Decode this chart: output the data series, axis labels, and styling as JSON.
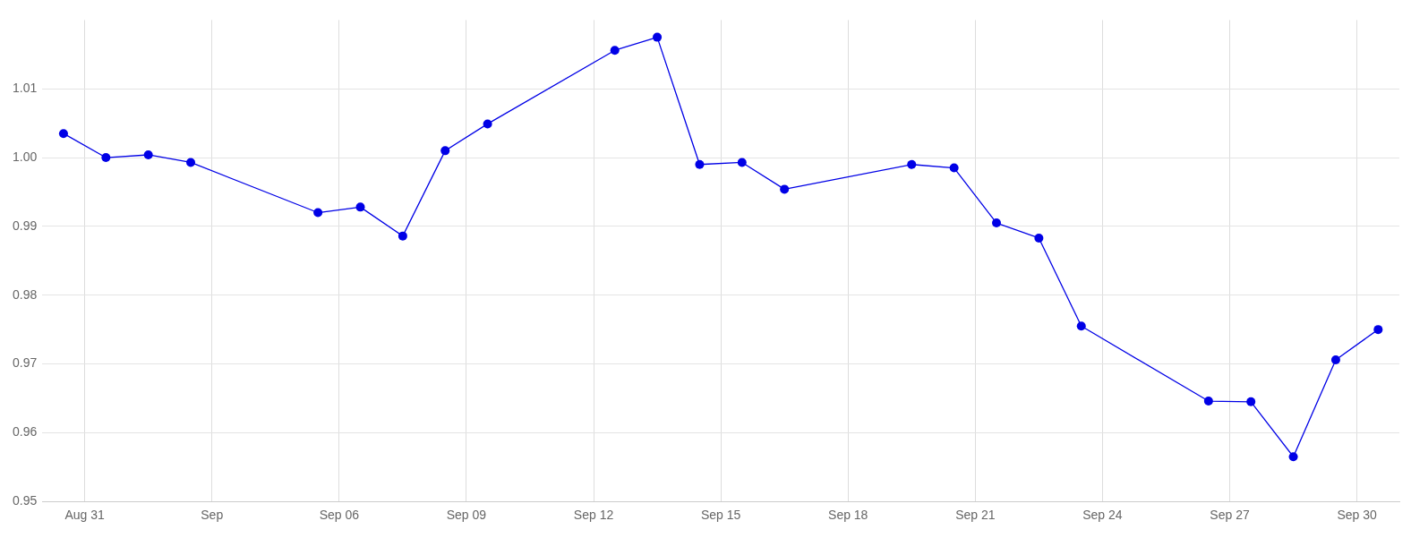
{
  "chart_data": {
    "type": "line",
    "x": [
      "--08-30T12:00",
      "--08-31T12:00",
      "--09-01T12:00",
      "--09-02T12:00",
      "--09-05T12:00",
      "--09-06T12:00",
      "--09-07T12:00",
      "--09-08T12:00",
      "--09-09T12:00",
      "--09-12T12:00",
      "--09-13T12:00",
      "--09-14T12:00",
      "--09-15T12:00",
      "--09-16T12:00",
      "--09-19T12:00",
      "--09-20T12:00",
      "--09-21T12:00",
      "--09-22T12:00",
      "--09-23T12:00",
      "--09-26T12:00",
      "--09-27T12:00",
      "--09-28T12:00",
      "--09-29T12:00",
      "--09-30T12:00"
    ],
    "series": [
      {
        "color": "#0000e6",
        "values": [
          1.0035,
          1.0,
          1.0004,
          0.9993,
          0.992,
          0.9928,
          0.9886,
          1.001,
          1.0049,
          1.0156,
          1.0175,
          0.999,
          0.9993,
          0.9954,
          0.999,
          0.9985,
          0.9905,
          0.9883,
          0.9755,
          0.9646,
          0.9645,
          0.9565,
          0.9706,
          0.975
        ]
      }
    ],
    "xlim": [
      "--08-30T00:00",
      "--10-01T00:00"
    ],
    "xticks": [
      {
        "value": "--08-31T00:00",
        "label": "Aug 31"
      },
      {
        "value": "--09-03T00:00",
        "label": "Sep"
      },
      {
        "value": "--09-06T00:00",
        "label": "Sep 06"
      },
      {
        "value": "--09-09T00:00",
        "label": "Sep 09"
      },
      {
        "value": "--09-12T00:00",
        "label": "Sep 12"
      },
      {
        "value": "--09-15T00:00",
        "label": "Sep 15"
      },
      {
        "value": "--09-18T00:00",
        "label": "Sep 18"
      },
      {
        "value": "--09-21T00:00",
        "label": "Sep 21"
      },
      {
        "value": "--09-24T00:00",
        "label": "Sep 24"
      },
      {
        "value": "--09-27T00:00",
        "label": "Sep 27"
      },
      {
        "value": "--09-30T00:00",
        "label": "Sep 30"
      }
    ],
    "ylim": [
      0.95,
      1.02
    ],
    "yticks": [
      0.95,
      0.96,
      0.97,
      0.98,
      0.99,
      {
        "value": 1.0,
        "label": "1.00"
      },
      1.01
    ],
    "grid": true,
    "legend": false,
    "marker": "circle",
    "line_style": "solid"
  }
}
